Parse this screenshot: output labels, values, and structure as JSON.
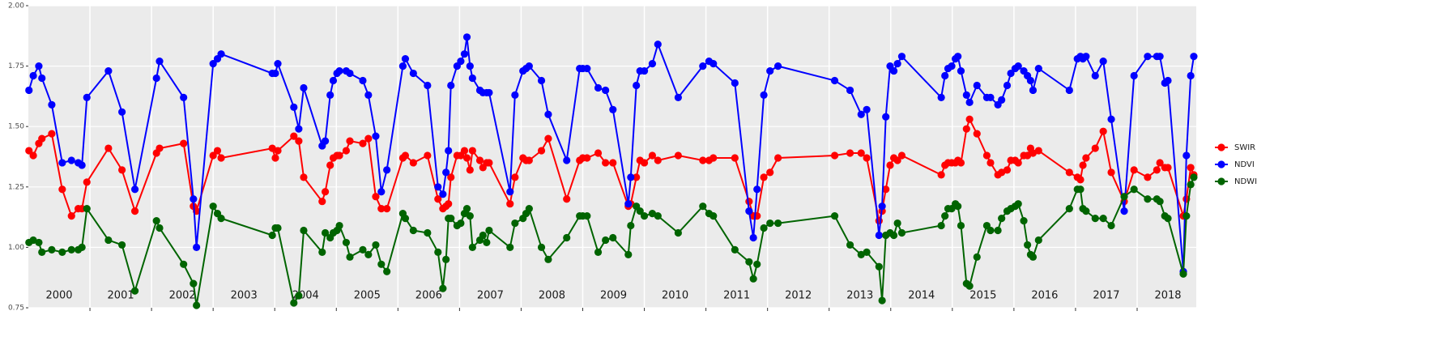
{
  "chart_data": {
    "type": "line",
    "x": [
      2000.01,
      2000.08,
      2000.17,
      2000.22,
      2000.38,
      2000.55,
      2000.7,
      2000.81,
      2000.87,
      2000.95,
      2001.3,
      2001.52,
      2001.73,
      2002.08,
      2002.13,
      2002.52,
      2002.68,
      2002.73,
      2003.0,
      2003.07,
      2003.13,
      2003.96,
      2004.01,
      2004.05,
      2004.31,
      2004.39,
      2004.47,
      2004.77,
      2004.82,
      2004.9,
      2004.95,
      2005.01,
      2005.05,
      2005.16,
      2005.22,
      2005.43,
      2005.52,
      2005.64,
      2005.73,
      2005.82,
      2006.08,
      2006.12,
      2006.25,
      2006.48,
      2006.65,
      2006.73,
      2006.78,
      2006.82,
      2006.86,
      2006.96,
      2007.02,
      2007.08,
      2007.12,
      2007.17,
      2007.21,
      2007.33,
      2007.38,
      2007.44,
      2007.48,
      2007.82,
      2007.9,
      2008.03,
      2008.08,
      2008.13,
      2008.33,
      2008.44,
      2008.74,
      2008.95,
      2009.0,
      2009.07,
      2009.25,
      2009.37,
      2009.49,
      2009.74,
      2009.78,
      2009.87,
      2009.93,
      2010.0,
      2010.13,
      2010.22,
      2010.55,
      2010.95,
      2011.05,
      2011.12,
      2011.47,
      2011.7,
      2011.77,
      2011.83,
      2011.94,
      2012.04,
      2012.17,
      2013.09,
      2013.34,
      2013.52,
      2013.61,
      2013.81,
      2013.86,
      2013.92,
      2013.99,
      2014.05,
      2014.11,
      2014.18,
      2014.82,
      2014.88,
      2014.93,
      2014.99,
      2015.05,
      2015.09,
      2015.14,
      2015.23,
      2015.28,
      2015.4,
      2015.56,
      2015.62,
      2015.74,
      2015.8,
      2015.89,
      2015.95,
      2016.02,
      2016.07,
      2016.16,
      2016.22,
      2016.27,
      2016.31,
      2016.4,
      2016.9,
      2017.03,
      2017.08,
      2017.12,
      2017.17,
      2017.32,
      2017.45,
      2017.58,
      2017.79,
      2017.95,
      2018.17,
      2018.32,
      2018.37,
      2018.45,
      2018.5,
      2018.75,
      2018.8,
      2018.87,
      2018.92
    ],
    "series": [
      {
        "name": "SWIR",
        "color": "#ff0000",
        "values": [
          1.4,
          1.38,
          1.43,
          1.45,
          1.47,
          1.24,
          1.13,
          1.16,
          1.16,
          1.27,
          1.41,
          1.32,
          1.15,
          1.39,
          1.41,
          1.43,
          1.17,
          1.15,
          1.38,
          1.4,
          1.37,
          1.41,
          1.37,
          1.4,
          1.46,
          1.44,
          1.29,
          1.19,
          1.23,
          1.34,
          1.37,
          1.38,
          1.38,
          1.4,
          1.44,
          1.43,
          1.45,
          1.21,
          1.16,
          1.16,
          1.37,
          1.38,
          1.35,
          1.38,
          1.2,
          1.16,
          1.17,
          1.18,
          1.29,
          1.38,
          1.38,
          1.4,
          1.37,
          1.32,
          1.4,
          1.36,
          1.33,
          1.35,
          1.35,
          1.18,
          1.29,
          1.37,
          1.36,
          1.36,
          1.4,
          1.45,
          1.2,
          1.36,
          1.37,
          1.37,
          1.39,
          1.35,
          1.35,
          1.17,
          1.18,
          1.29,
          1.36,
          1.35,
          1.38,
          1.36,
          1.38,
          1.36,
          1.36,
          1.37,
          1.37,
          1.19,
          1.13,
          1.13,
          1.29,
          1.31,
          1.37,
          1.38,
          1.39,
          1.39,
          1.37,
          1.11,
          1.15,
          1.24,
          1.34,
          1.37,
          1.36,
          1.38,
          1.3,
          1.34,
          1.35,
          1.35,
          1.35,
          1.36,
          1.35,
          1.49,
          1.53,
          1.47,
          1.38,
          1.35,
          1.3,
          1.31,
          1.32,
          1.36,
          1.36,
          1.35,
          1.38,
          1.38,
          1.41,
          1.39,
          1.4,
          1.31,
          1.29,
          1.28,
          1.34,
          1.37,
          1.41,
          1.48,
          1.31,
          1.19,
          1.32,
          1.29,
          1.32,
          1.35,
          1.33,
          1.33,
          1.13,
          1.2,
          1.33,
          1.3
        ]
      },
      {
        "name": "NDVI",
        "color": "#0000ff",
        "values": [
          1.65,
          1.71,
          1.75,
          1.7,
          1.59,
          1.35,
          1.36,
          1.35,
          1.34,
          1.62,
          1.73,
          1.56,
          1.24,
          1.7,
          1.77,
          1.62,
          1.2,
          1.0,
          1.76,
          1.78,
          1.8,
          1.72,
          1.72,
          1.76,
          1.58,
          1.49,
          1.66,
          1.42,
          1.44,
          1.63,
          1.69,
          1.72,
          1.73,
          1.73,
          1.72,
          1.69,
          1.63,
          1.46,
          1.23,
          1.32,
          1.75,
          1.78,
          1.72,
          1.67,
          1.25,
          1.22,
          1.31,
          1.4,
          1.67,
          1.75,
          1.77,
          1.8,
          1.87,
          1.75,
          1.7,
          1.65,
          1.64,
          1.64,
          1.64,
          1.23,
          1.63,
          1.73,
          1.74,
          1.75,
          1.69,
          1.55,
          1.36,
          1.74,
          1.74,
          1.74,
          1.66,
          1.65,
          1.57,
          1.18,
          1.29,
          1.67,
          1.73,
          1.73,
          1.76,
          1.84,
          1.62,
          1.75,
          1.77,
          1.76,
          1.68,
          1.15,
          1.04,
          1.24,
          1.63,
          1.73,
          1.75,
          1.69,
          1.65,
          1.55,
          1.57,
          1.05,
          1.17,
          1.54,
          1.75,
          1.73,
          1.76,
          1.79,
          1.62,
          1.71,
          1.74,
          1.75,
          1.78,
          1.79,
          1.73,
          1.63,
          1.6,
          1.67,
          1.62,
          1.62,
          1.59,
          1.61,
          1.67,
          1.72,
          1.74,
          1.75,
          1.73,
          1.71,
          1.69,
          1.65,
          1.74,
          1.65,
          1.78,
          1.79,
          1.78,
          1.79,
          1.71,
          1.77,
          1.53,
          1.15,
          1.71,
          1.79,
          1.79,
          1.79,
          1.68,
          1.69,
          0.9,
          1.38,
          1.71,
          1.79
        ]
      },
      {
        "name": "NDWI",
        "color": "#006400",
        "values": [
          1.02,
          1.03,
          1.02,
          0.98,
          0.99,
          0.98,
          0.99,
          0.99,
          1.0,
          1.16,
          1.03,
          1.01,
          0.82,
          1.11,
          1.08,
          0.93,
          0.85,
          0.76,
          1.17,
          1.14,
          1.12,
          1.05,
          1.08,
          1.08,
          0.77,
          0.8,
          1.07,
          0.98,
          1.06,
          1.04,
          1.06,
          1.07,
          1.09,
          1.02,
          0.96,
          0.99,
          0.97,
          1.01,
          0.93,
          0.9,
          1.14,
          1.12,
          1.07,
          1.06,
          0.98,
          0.83,
          0.95,
          1.12,
          1.12,
          1.09,
          1.1,
          1.14,
          1.16,
          1.13,
          1.0,
          1.03,
          1.05,
          1.02,
          1.07,
          1.0,
          1.1,
          1.12,
          1.14,
          1.16,
          1.0,
          0.95,
          1.04,
          1.13,
          1.13,
          1.13,
          0.98,
          1.03,
          1.04,
          0.97,
          1.09,
          1.17,
          1.15,
          1.13,
          1.14,
          1.13,
          1.06,
          1.17,
          1.14,
          1.13,
          0.99,
          0.94,
          0.87,
          0.93,
          1.08,
          1.1,
          1.1,
          1.13,
          1.01,
          0.97,
          0.98,
          0.92,
          0.78,
          1.05,
          1.06,
          1.05,
          1.1,
          1.06,
          1.09,
          1.13,
          1.16,
          1.16,
          1.18,
          1.17,
          1.09,
          0.85,
          0.84,
          0.96,
          1.09,
          1.07,
          1.07,
          1.12,
          1.15,
          1.16,
          1.17,
          1.18,
          1.11,
          1.01,
          0.97,
          0.96,
          1.03,
          1.16,
          1.24,
          1.24,
          1.16,
          1.15,
          1.12,
          1.12,
          1.09,
          1.21,
          1.24,
          1.2,
          1.2,
          1.19,
          1.13,
          1.12,
          0.89,
          1.13,
          1.26,
          1.29
        ]
      }
    ],
    "xlim": [
      2000,
      2018.96
    ],
    "xticks": [
      2001,
      2002,
      2003,
      2004,
      2005,
      2006,
      2007,
      2008,
      2009,
      2010,
      2011,
      2012,
      2013,
      2014,
      2015,
      2016,
      2017,
      2018
    ],
    "ylim": [
      0.75,
      2.0
    ],
    "yticks": [
      {
        "value": 0.75,
        "label": "0.75"
      },
      {
        "value": 1,
        "label": "1.00"
      },
      {
        "value": 1.25,
        "label": "1.25"
      },
      {
        "value": 1.5,
        "label": "1.50"
      },
      {
        "value": 1.75,
        "label": "1.75"
      },
      {
        "value": 2,
        "label": "2.00"
      }
    ],
    "grid": true,
    "legend": "right",
    "annotations": [
      {
        "text": "2000",
        "x": 2000.5,
        "y": 0.8
      },
      {
        "text": "2001",
        "x": 2001.5,
        "y": 0.8
      },
      {
        "text": "2002",
        "x": 2002.5,
        "y": 0.8
      },
      {
        "text": "2003",
        "x": 2003.5,
        "y": 0.8
      },
      {
        "text": "2004",
        "x": 2004.5,
        "y": 0.8
      },
      {
        "text": "2005",
        "x": 2005.5,
        "y": 0.8
      },
      {
        "text": "2006",
        "x": 2006.5,
        "y": 0.8
      },
      {
        "text": "2007",
        "x": 2007.5,
        "y": 0.8
      },
      {
        "text": "2008",
        "x": 2008.5,
        "y": 0.8
      },
      {
        "text": "2009",
        "x": 2009.5,
        "y": 0.8
      },
      {
        "text": "2010",
        "x": 2010.5,
        "y": 0.8
      },
      {
        "text": "2011",
        "x": 2011.5,
        "y": 0.8
      },
      {
        "text": "2012",
        "x": 2012.5,
        "y": 0.8
      },
      {
        "text": "2013",
        "x": 2013.5,
        "y": 0.8
      },
      {
        "text": "2014",
        "x": 2014.5,
        "y": 0.8
      },
      {
        "text": "2015",
        "x": 2015.5,
        "y": 0.8
      },
      {
        "text": "2016",
        "x": 2016.5,
        "y": 0.8
      },
      {
        "text": "2017",
        "x": 2017.5,
        "y": 0.8
      },
      {
        "text": "2018",
        "x": 2018.5,
        "y": 0.8
      }
    ]
  }
}
